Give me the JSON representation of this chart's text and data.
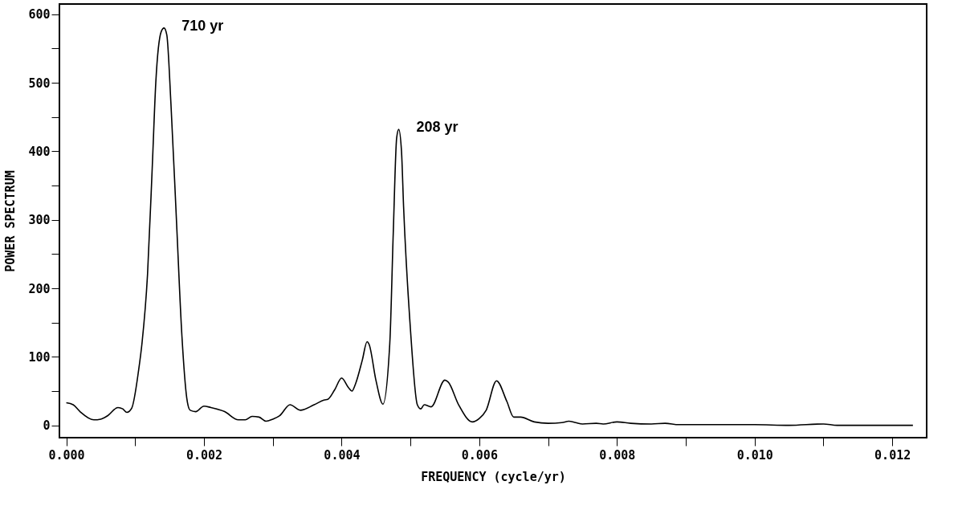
{
  "chart_data": {
    "type": "line",
    "xlabel": "FREQUENCY (cycle/yr)",
    "ylabel": "POWER SPECTRUM",
    "xlim": [
      -0.0001,
      0.0125
    ],
    "ylim": [
      -18,
      615
    ],
    "xticks": [
      {
        "value": 0,
        "label": "0.000"
      },
      {
        "value": 0.001,
        "label": null
      },
      {
        "value": 0.002,
        "label": "0.002"
      },
      {
        "value": 0.003,
        "label": null
      },
      {
        "value": 0.004,
        "label": "0.004"
      },
      {
        "value": 0.005,
        "label": null
      },
      {
        "value": 0.006,
        "label": "0.006"
      },
      {
        "value": 0.007,
        "label": null
      },
      {
        "value": 0.008,
        "label": "0.008"
      },
      {
        "value": 0.009,
        "label": null
      },
      {
        "value": 0.01,
        "label": "0.010"
      },
      {
        "value": 0.011,
        "label": null
      },
      {
        "value": 0.012,
        "label": "0.012"
      }
    ],
    "yticks": [
      0,
      {
        "value": 50,
        "label": null
      },
      100,
      {
        "value": 150,
        "label": null
      },
      200,
      {
        "value": 250,
        "label": null
      },
      300,
      {
        "value": 350,
        "label": null
      },
      400,
      {
        "value": 450,
        "label": null
      },
      500,
      {
        "value": 550,
        "label": null
      },
      600
    ],
    "grid": false,
    "marker": "none",
    "line_style": "solid",
    "annotations": [
      {
        "text": "710 yr",
        "x": 0.00142,
        "y": 580
      },
      {
        "text": "208 yr",
        "x": 0.00483,
        "y": 432
      }
    ],
    "series": [
      {
        "color": "#000000",
        "x": [
          0.0,
          0.0001,
          0.0002,
          0.0004,
          0.0005,
          0.0006,
          0.00075,
          0.00082,
          0.00088,
          0.00095,
          0.00105,
          0.0011,
          0.00118,
          0.00125,
          0.0013,
          0.00138,
          0.00142,
          0.00146,
          0.00152,
          0.0016,
          0.00168,
          0.00175,
          0.0018,
          0.00188,
          0.002,
          0.0021,
          0.0023,
          0.0025,
          0.0026,
          0.0027,
          0.0028,
          0.0029,
          0.003,
          0.0031,
          0.00325,
          0.0034,
          0.0036,
          0.00375,
          0.0038,
          0.0039,
          0.004,
          0.0041,
          0.00415,
          0.0042,
          0.0043,
          0.00437,
          0.0044,
          0.0045,
          0.0046,
          0.0047,
          0.00475,
          0.0048,
          0.00483,
          0.00487,
          0.0049,
          0.005,
          0.0051,
          0.00515,
          0.0052,
          0.0053,
          0.0055,
          0.00555,
          0.0057,
          0.0059,
          0.006,
          0.0061,
          0.00625,
          0.0064,
          0.0065,
          0.0066,
          0.0068,
          0.007,
          0.0072,
          0.0073,
          0.0074,
          0.0075,
          0.0077,
          0.0078,
          0.008,
          0.0082,
          0.0085,
          0.0087,
          0.0089,
          0.0095,
          0.01,
          0.0105,
          0.011,
          0.0112,
          0.0123
        ],
        "values": [
          33,
          30,
          20,
          8,
          9,
          14,
          26,
          24,
          19,
          25,
          80,
          120,
          220,
          380,
          500,
          575,
          580,
          570,
          470,
          300,
          130,
          40,
          22,
          20,
          28,
          26,
          20,
          8,
          8,
          13,
          12,
          6,
          9,
          14,
          30,
          22,
          30,
          37,
          38,
          52,
          69,
          55,
          50,
          60,
          95,
          122,
          118,
          65,
          31,
          120,
          280,
          420,
          432,
          400,
          320,
          140,
          30,
          24,
          30,
          27,
          66,
          63,
          30,
          5,
          10,
          22,
          65,
          35,
          12,
          12,
          5,
          3,
          4,
          6,
          4,
          2,
          3,
          2,
          5,
          3,
          2,
          3,
          1,
          1,
          1,
          0,
          2,
          0,
          0
        ]
      }
    ]
  }
}
